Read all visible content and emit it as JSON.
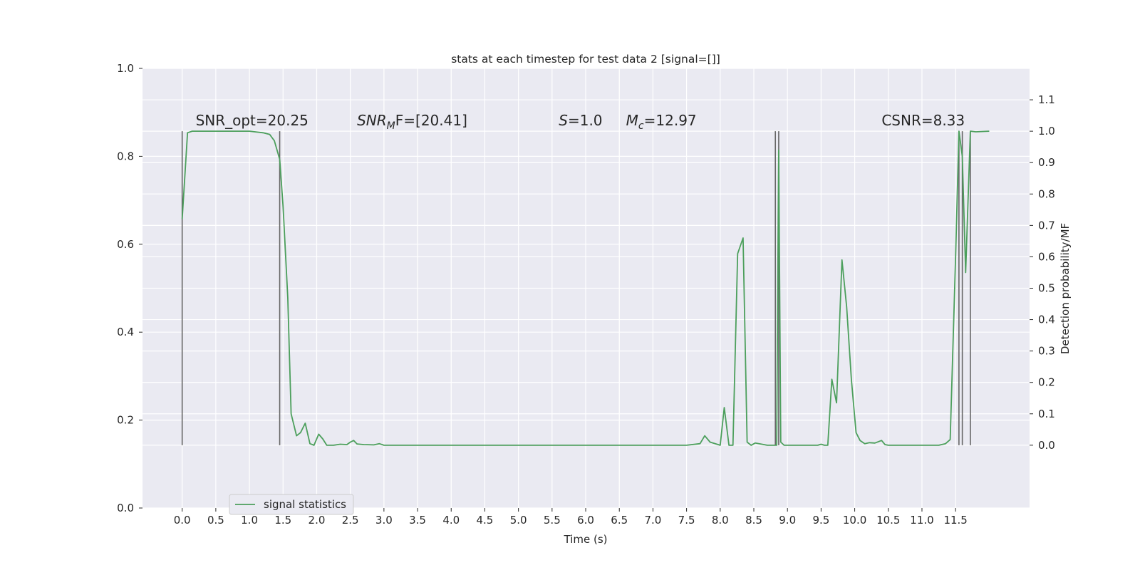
{
  "chart_data": {
    "type": "line",
    "title": "stats at each timestep for test data 2 [signal=[]]",
    "xlabel": "Time (s)",
    "ylabel": "",
    "ylabel_right": "Detection probability/MF",
    "xlim": [
      -0.59,
      12.6
    ],
    "ylim": [
      0.0,
      1.0
    ],
    "ylim_right": [
      -0.2,
      1.2
    ],
    "xticks": [
      "0.0",
      "0.5",
      "1.0",
      "1.5",
      "2.0",
      "2.5",
      "3.0",
      "3.5",
      "4.0",
      "4.5",
      "5.0",
      "5.5",
      "6.0",
      "6.5",
      "7.0",
      "7.5",
      "8.0",
      "8.5",
      "9.0",
      "9.5",
      "10.0",
      "10.5",
      "11.0",
      "11.5"
    ],
    "yticks": [
      "0.0",
      "0.2",
      "0.4",
      "0.6",
      "0.8",
      "1.0"
    ],
    "yticks_right": [
      "0.0",
      "0.1",
      "0.2",
      "0.3",
      "0.4",
      "0.5",
      "0.6",
      "0.7",
      "0.8",
      "0.9",
      "1.0",
      "1.1"
    ],
    "grid": true,
    "legend_position": "lower-left",
    "annotations": [
      {
        "text": "SNR_opt=20.25",
        "x": 0.2
      },
      {
        "text": "F=[20.41]",
        "italic_prefix": "SNR",
        "subscript": "M",
        "x": 2.6
      },
      {
        "text": "=1.0",
        "italic_prefix": "S",
        "x": 5.6
      },
      {
        "text": "=12.97",
        "italic_prefix": "M",
        "subscript": "c",
        "x": 6.6
      },
      {
        "text": "CSNR=8.33",
        "x": 10.4
      }
    ],
    "vlines": [
      0.0,
      1.45,
      8.82,
      8.87,
      11.55,
      11.6,
      11.72
    ],
    "vline_range": [
      0.0,
      1.0
    ],
    "series": [
      {
        "name": "signal statistics",
        "color": "#4c9f5c",
        "x": [
          0.0,
          0.08,
          0.15,
          0.3,
          0.6,
          1.0,
          1.2,
          1.3,
          1.37,
          1.45,
          1.5,
          1.57,
          1.62,
          1.7,
          1.76,
          1.83,
          1.9,
          1.96,
          2.03,
          2.09,
          2.15,
          2.25,
          2.35,
          2.45,
          2.5,
          2.55,
          2.6,
          2.7,
          2.85,
          2.93,
          3.0,
          3.5,
          4.0,
          5.0,
          6.0,
          7.0,
          7.5,
          7.7,
          7.77,
          7.85,
          8.0,
          8.06,
          8.13,
          8.19,
          8.26,
          8.34,
          8.4,
          8.46,
          8.52,
          8.6,
          8.7,
          8.8,
          8.82,
          8.84,
          8.87,
          8.9,
          8.95,
          9.0,
          9.2,
          9.45,
          9.5,
          9.55,
          9.6,
          9.66,
          9.73,
          9.81,
          9.88,
          9.95,
          10.02,
          10.08,
          10.15,
          10.22,
          10.3,
          10.4,
          10.45,
          10.5,
          10.6,
          10.7,
          10.85,
          10.95,
          11.1,
          11.25,
          11.35,
          11.42,
          11.5,
          11.55,
          11.6,
          11.65,
          11.72,
          11.8,
          12.0
        ],
        "y": [
          0.72,
          0.995,
          1.0,
          1.0,
          1.0,
          1.0,
          0.995,
          0.99,
          0.97,
          0.91,
          0.76,
          0.47,
          0.1,
          0.03,
          0.04,
          0.07,
          0.005,
          0.0,
          0.035,
          0.02,
          0.0,
          0.0,
          0.003,
          0.002,
          0.01,
          0.015,
          0.004,
          0.002,
          0.001,
          0.005,
          0.0,
          0.0,
          0.0,
          0.0,
          0.0,
          0.0,
          0.0,
          0.005,
          0.03,
          0.01,
          0.0,
          0.12,
          0.0,
          0.0,
          0.61,
          0.66,
          0.01,
          0.0,
          0.007,
          0.004,
          0.0,
          0.0,
          0.0,
          0.0,
          0.94,
          0.01,
          0.0,
          0.0,
          0.0,
          0.0,
          0.003,
          0.0,
          0.0,
          0.21,
          0.135,
          0.59,
          0.44,
          0.21,
          0.04,
          0.015,
          0.005,
          0.008,
          0.007,
          0.015,
          0.002,
          0.0,
          0.0,
          0.0,
          0.0,
          0.0,
          0.0,
          0.0,
          0.005,
          0.018,
          0.6,
          1.0,
          0.92,
          0.55,
          1.0,
          0.998,
          1.0
        ]
      }
    ]
  }
}
